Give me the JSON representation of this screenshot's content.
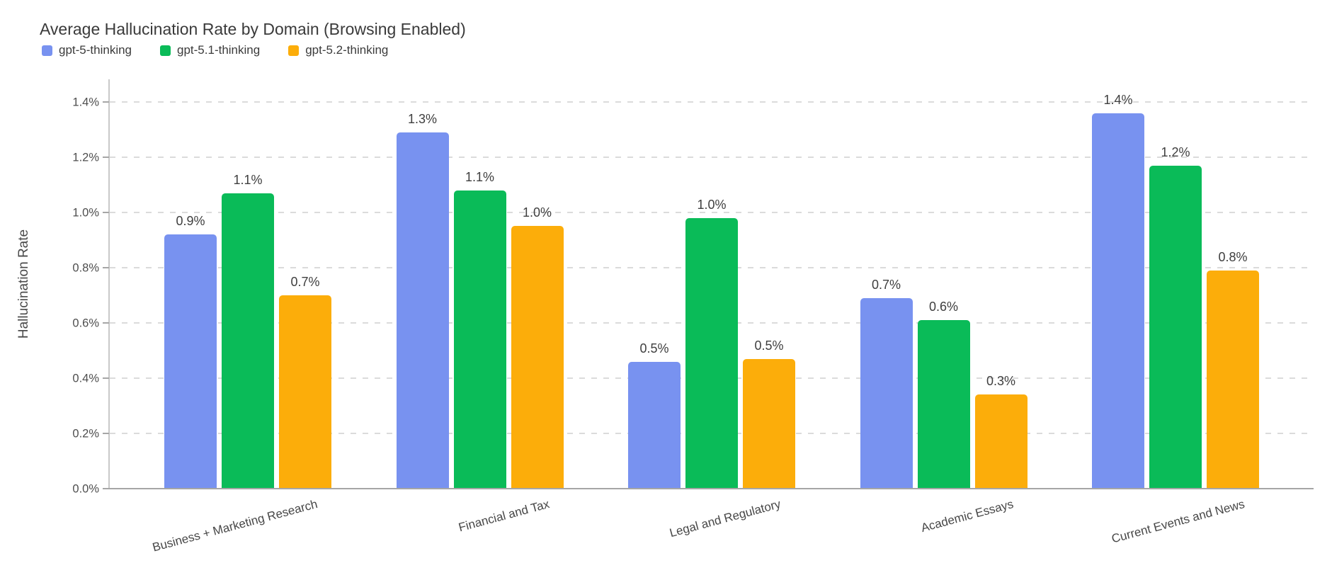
{
  "chart_data": {
    "type": "bar",
    "title": "Average Hallucination Rate by Domain (Browsing Enabled)",
    "ylabel": "Hallucination Rate",
    "xlabel": "",
    "categories": [
      "Business + Marketing Research",
      "Financial and Tax",
      "Legal and Regulatory",
      "Academic Essays",
      "Current Events and News"
    ],
    "series": [
      {
        "name": "gpt-5-thinking",
        "color": "#7892F0",
        "values": [
          0.92,
          1.29,
          0.46,
          0.69,
          1.36
        ],
        "bar_labels": [
          "0.9%",
          "1.3%",
          "0.5%",
          "0.7%",
          "1.4%"
        ]
      },
      {
        "name": "gpt-5.1-thinking",
        "color": "#0ABB58",
        "values": [
          1.07,
          1.08,
          0.98,
          0.61,
          1.17
        ],
        "bar_labels": [
          "1.1%",
          "1.1%",
          "1.0%",
          "0.6%",
          "1.2%"
        ]
      },
      {
        "name": "gpt-5.2-thinking",
        "color": "#FCAD0A",
        "values": [
          0.7,
          0.95,
          0.47,
          0.34,
          0.79
        ],
        "bar_labels": [
          "0.7%",
          "1.0%",
          "0.5%",
          "0.3%",
          "0.8%"
        ]
      }
    ],
    "y_ticks": [
      "0.0%",
      "0.2%",
      "0.4%",
      "0.6%",
      "0.8%",
      "1.0%",
      "1.2%",
      "1.4%"
    ],
    "ylim": [
      0,
      1.48
    ],
    "grid": "horizontal-dashed",
    "legend_position": "top-left",
    "bar_label_format": "percent-1dp"
  },
  "colors": {
    "background": "#FFFFFF",
    "gridline": "#DBDBDB",
    "axis_line": "#C9C9C9",
    "baseline": "#A6A6A6",
    "title_text": "#3A3A3A",
    "tick_text": "#4E4E4E",
    "label_text": "#3E3E3E"
  }
}
